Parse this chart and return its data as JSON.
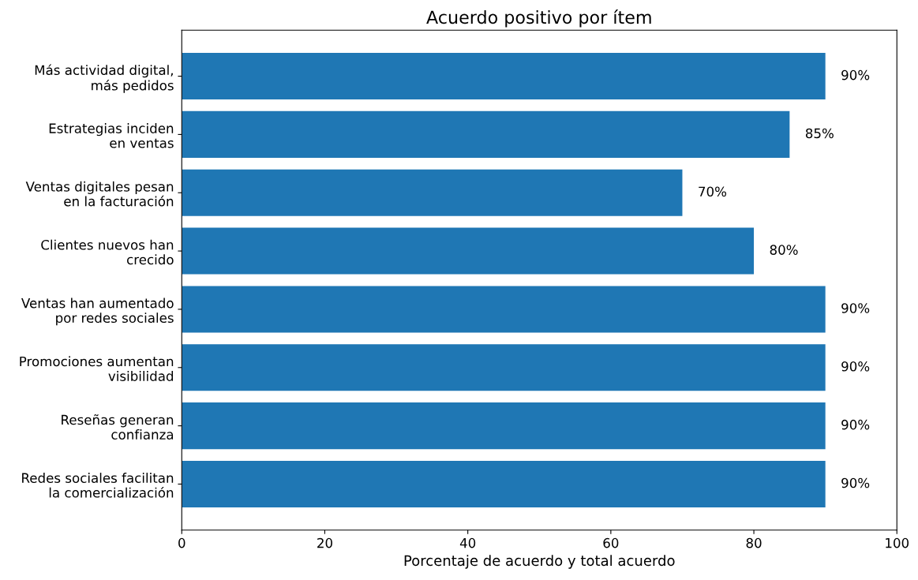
{
  "chart_data": {
    "type": "bar",
    "orientation": "horizontal",
    "title": "Acuerdo positivo por ítem",
    "xlabel": "Porcentaje de acuerdo y total acuerdo",
    "categories": [
      "Más actividad digital,\nmás pedidos",
      "Estrategias inciden\nen ventas",
      "Ventas digitales pesan\nen la facturación",
      "Clientes nuevos han\ncrecido",
      "Ventas han aumentado\npor redes sociales",
      "Promociones aumentan\nvisibilidad",
      "Reseñas generan\nconfianza",
      "Redes sociales facilitan\nla comercialización"
    ],
    "values": [
      90,
      85,
      70,
      80,
      90,
      90,
      90,
      90
    ],
    "value_labels": [
      "90%",
      "85%",
      "70%",
      "80%",
      "90%",
      "90%",
      "90%",
      "90%"
    ],
    "color": "#1f77b4",
    "xlim": [
      0,
      100
    ],
    "xticks": [
      0,
      20,
      40,
      60,
      80,
      100
    ],
    "grid": false,
    "legend": false
  }
}
